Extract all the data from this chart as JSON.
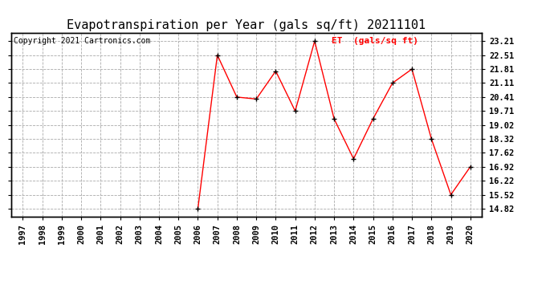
{
  "title": "Evapotranspiration per Year (gals sq/ft) 20211101",
  "copyright": "Copyright 2021 Cartronics.com",
  "legend_label": "ET  (gals/sq ft)",
  "years": [
    1997,
    1998,
    1999,
    2000,
    2001,
    2002,
    2003,
    2004,
    2005,
    2006,
    2007,
    2008,
    2009,
    2010,
    2011,
    2012,
    2013,
    2014,
    2015,
    2016,
    2017,
    2018,
    2019,
    2020
  ],
  "values": [
    null,
    null,
    null,
    null,
    null,
    null,
    null,
    null,
    null,
    14.82,
    22.51,
    20.41,
    20.31,
    21.71,
    19.71,
    23.21,
    19.32,
    17.32,
    19.32,
    21.11,
    21.81,
    18.32,
    15.52,
    16.92
  ],
  "yticks": [
    14.82,
    15.52,
    16.22,
    16.92,
    17.62,
    18.32,
    19.02,
    19.71,
    20.41,
    21.11,
    21.81,
    22.51,
    23.21
  ],
  "ylim": [
    14.42,
    23.61
  ],
  "line_color": "red",
  "marker_color": "black",
  "background_color": "white",
  "grid_color": "#aaaaaa",
  "title_fontsize": 11,
  "copyright_fontsize": 7,
  "legend_color": "red",
  "legend_fontsize": 8,
  "tick_label_fontsize": 7.5
}
